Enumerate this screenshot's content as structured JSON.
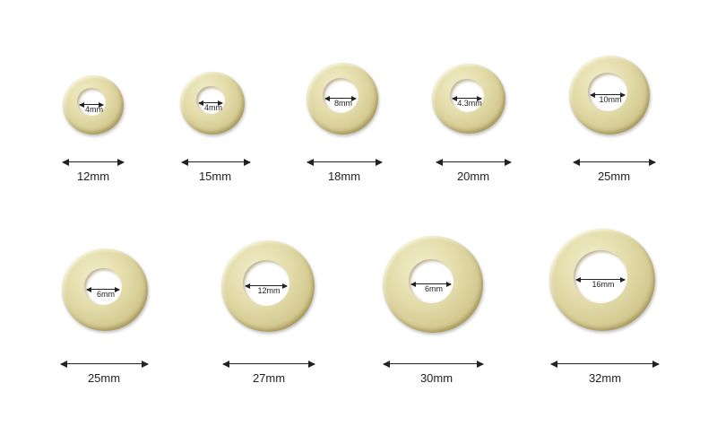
{
  "washers": [
    {
      "outer_diameter": "12mm",
      "inner_diameter": "4mm"
    },
    {
      "outer_diameter": "15mm",
      "inner_diameter": "4mm"
    },
    {
      "outer_diameter": "18mm",
      "inner_diameter": "8mm"
    },
    {
      "outer_diameter": "20mm",
      "inner_diameter": "4.3mm"
    },
    {
      "outer_diameter": "25mm",
      "inner_diameter": "10mm"
    },
    {
      "outer_diameter": "25mm",
      "inner_diameter": "6mm"
    },
    {
      "outer_diameter": "27mm",
      "inner_diameter": "12mm"
    },
    {
      "outer_diameter": "30mm",
      "inner_diameter": "6mm"
    },
    {
      "outer_diameter": "32mm",
      "inner_diameter": "16mm"
    }
  ],
  "colors": {
    "washer": "#e3dcaa",
    "arrow": "#222222"
  }
}
